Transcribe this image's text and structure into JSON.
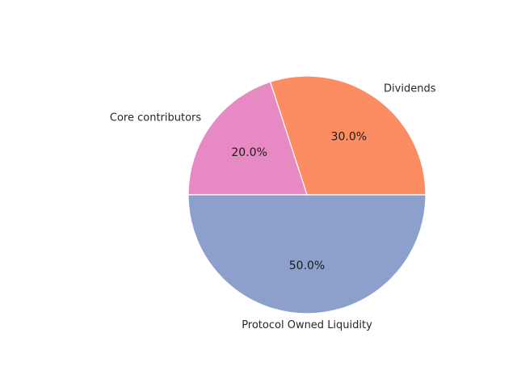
{
  "chart_data": {
    "type": "pie",
    "title": "",
    "slices": [
      {
        "label": "Dividends",
        "value": 30.0,
        "pct_text": "30.0%",
        "color": "#fc8d62"
      },
      {
        "label": "Core contributors",
        "value": 20.0,
        "pct_text": "20.0%",
        "color": "#e78ac3"
      },
      {
        "label": "Protocol Owned Liquidity",
        "value": 50.0,
        "pct_text": "50.0%",
        "color": "#8da0cb"
      }
    ],
    "start_angle_deg": 0,
    "direction": "counterclockwise",
    "wedge_edge_color": "#ffffff"
  }
}
